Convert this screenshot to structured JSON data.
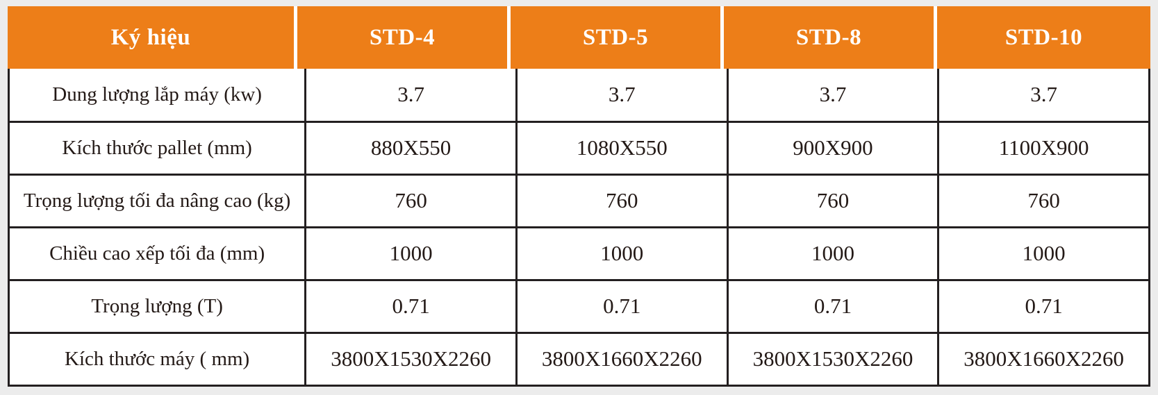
{
  "colors": {
    "header_bg": "#ed7e18",
    "header_text": "#ffffff",
    "body_bg": "#ffffff",
    "border": "#231f20",
    "page_bg": "#ececec",
    "text": "#231916"
  },
  "chart_data": {
    "type": "table",
    "columns": [
      "Ký hiệu",
      "STD-4",
      "STD-5",
      "STD-8",
      "STD-10"
    ],
    "rows": [
      [
        "Dung lượng lắp máy (kw)",
        "3.7",
        "3.7",
        "3.7",
        "3.7"
      ],
      [
        "Kích thước pallet (mm)",
        "880X550",
        "1080X550",
        "900X900",
        "1100X900"
      ],
      [
        "Trọng lượng tối đa nâng cao (kg)",
        "760",
        "760",
        "760",
        "760"
      ],
      [
        "Chiều cao xếp tối đa (mm)",
        "1000",
        "1000",
        "1000",
        "1000"
      ],
      [
        "Trọng lượng (T)",
        "0.71",
        "0.71",
        "0.71",
        "0.71"
      ],
      [
        "Kích thước máy ( mm)",
        "3800X1530X2260",
        "3800X1660X2260",
        "3800X1530X2260",
        "3800X1660X2260"
      ]
    ]
  }
}
